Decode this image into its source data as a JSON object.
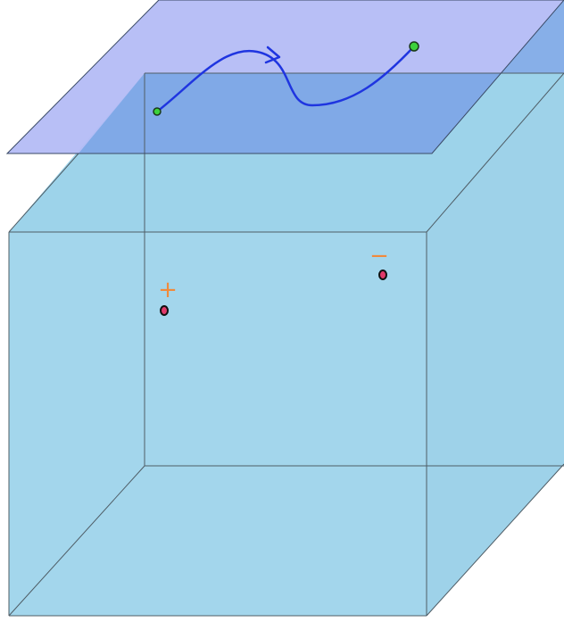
{
  "diagram": {
    "colors": {
      "background": "#ffffff",
      "cube_fill": "#a3d6ec",
      "cube_face_top": "#9dd3ea",
      "cube_face_right": "#9ed2e9",
      "cube_edge": "#4f5d66",
      "plane_fill": "#b4bcf5",
      "plane_overlap": "#7aa6e6",
      "plane_edge": "#3a4a66",
      "path_stroke": "#1f35e0",
      "path_endpoint_fill": "#3cd13c",
      "path_endpoint_stroke": "#1a3a1a",
      "charge_fill": "#e03a6a",
      "charge_stroke": "#111111",
      "sign_color": "#f08a3c"
    },
    "charges": [
      {
        "sign": "+",
        "name": "positive"
      },
      {
        "sign": "−",
        "name": "negative"
      }
    ],
    "path_points": [
      "start",
      "end"
    ],
    "icons": {
      "path_arrow": "arrowhead-icon",
      "endpoint": "green-dot-icon",
      "charge": "charge-dot-icon"
    }
  }
}
